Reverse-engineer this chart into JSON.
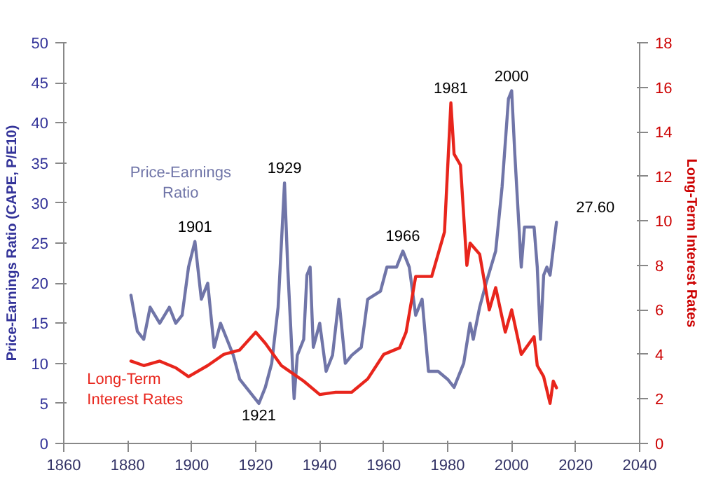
{
  "chart_data": {
    "type": "line",
    "ylabel": "Price-Earnings Ratio (CAPE, P/E10)",
    "y2label": "Long-Term Interest Rates",
    "xlim": [
      1860,
      2040
    ],
    "xticks": [
      1860,
      1880,
      1900,
      1920,
      1940,
      1960,
      1980,
      2000,
      2020,
      2040
    ],
    "ylim": [
      0,
      50
    ],
    "yticks": [
      0,
      5,
      10,
      15,
      20,
      25,
      30,
      35,
      40,
      45,
      50
    ],
    "y2lim": [
      0,
      18
    ],
    "y2ticks": [
      0,
      2,
      4,
      6,
      8,
      10,
      12,
      14,
      16,
      18
    ],
    "grid": false,
    "series": [
      {
        "name": "Price-Earnings Ratio",
        "color": "#7075a8",
        "x": [
          1881,
          1883,
          1885,
          1887,
          1890,
          1893,
          1895,
          1897,
          1899,
          1901,
          1903,
          1905,
          1907,
          1909,
          1911,
          1913,
          1915,
          1917,
          1919,
          1920,
          1921,
          1923,
          1925,
          1927,
          1929,
          1930,
          1931,
          1932,
          1933,
          1935,
          1936,
          1937,
          1938,
          1940,
          1942,
          1944,
          1946,
          1948,
          1950,
          1953,
          1955,
          1959,
          1961,
          1964,
          1966,
          1968,
          1970,
          1972,
          1974,
          1977,
          1980,
          1982,
          1985,
          1987,
          1988,
          1990,
          1992,
          1995,
          1997,
          1999,
          2000,
          2001,
          2003,
          2004,
          2007,
          2008,
          2009,
          2010,
          2011,
          2012,
          2014
        ],
        "values": [
          18.5,
          14,
          13,
          17,
          15,
          17,
          15,
          16,
          22,
          25.2,
          18,
          20,
          12,
          15,
          13,
          11,
          8,
          7,
          6,
          5.5,
          5,
          7,
          10,
          17,
          32.5,
          22,
          14,
          5.6,
          11,
          13,
          21,
          22,
          12,
          15,
          9,
          11,
          18,
          10,
          11,
          12,
          18,
          19,
          22,
          22,
          24,
          22,
          16,
          18,
          9,
          9,
          8,
          7,
          10,
          15,
          13,
          17,
          20,
          24,
          32,
          43,
          44,
          36,
          22,
          27,
          27,
          22,
          13,
          21,
          22,
          21,
          27.6
        ]
      },
      {
        "name": "Long-Term Interest Rates",
        "color": "#e8251c",
        "axis": "y2",
        "x": [
          1881,
          1885,
          1890,
          1895,
          1899,
          1905,
          1910,
          1915,
          1920,
          1923,
          1928,
          1930,
          1935,
          1940,
          1945,
          1950,
          1955,
          1960,
          1965,
          1967,
          1970,
          1975,
          1979,
          1981,
          1982,
          1984,
          1986,
          1987,
          1990,
          1993,
          1995,
          1998,
          2000,
          2003,
          2007,
          2008,
          2010,
          2012,
          2013,
          2014
        ],
        "values": [
          3.7,
          3.5,
          3.7,
          3.4,
          3.0,
          3.5,
          4.0,
          4.2,
          5.0,
          4.5,
          3.5,
          3.3,
          2.8,
          2.2,
          2.3,
          2.3,
          2.9,
          4.0,
          4.3,
          5.0,
          7.5,
          7.5,
          9.5,
          15.3,
          13,
          12.5,
          8,
          9,
          8.5,
          6,
          7,
          5,
          6,
          4,
          4.8,
          3.5,
          3,
          1.8,
          2.8,
          2.5
        ]
      }
    ],
    "annotations": [
      {
        "text": "1901",
        "x": 1901,
        "y": 25.2
      },
      {
        "text": "1929",
        "x": 1929,
        "y": 32.5
      },
      {
        "text": "1921",
        "x": 1921,
        "y": 5
      },
      {
        "text": "1966",
        "x": 1966,
        "y": 24
      },
      {
        "text": "2000",
        "x": 2000,
        "y": 44
      },
      {
        "text": "27.60",
        "x": 2014,
        "y": 27.6
      },
      {
        "text": "1981",
        "x": 1981,
        "y": 42.5
      }
    ]
  }
}
